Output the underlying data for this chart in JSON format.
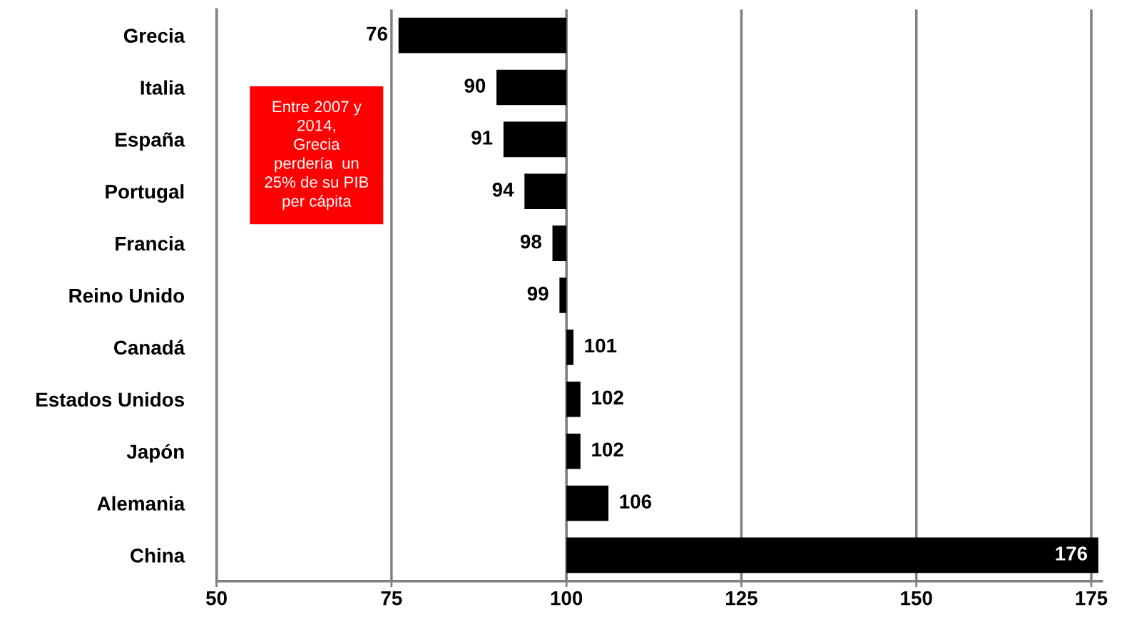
{
  "chart_data": {
    "type": "bar",
    "orientation": "horizontal",
    "categories": [
      "Grecia",
      "Italia",
      "España",
      "Portugal",
      "Francia",
      "Reino Unido",
      "Canadá",
      "Estados Unidos",
      "Japón",
      "Alemania",
      "China"
    ],
    "base": [
      100,
      100,
      100,
      100,
      100,
      100,
      100,
      100,
      100,
      100,
      100
    ],
    "values": [
      -24,
      -10,
      -9,
      -6,
      -2,
      -1,
      1,
      2,
      2,
      6,
      76
    ],
    "value_labels": [
      "76",
      "90",
      "91",
      "94",
      "98",
      "99",
      "101",
      "102",
      "102",
      "106",
      "176"
    ],
    "color": "#000000",
    "xlim": [
      50,
      176.5
    ],
    "xticks": [
      50,
      75,
      100,
      125,
      150,
      175
    ],
    "grid": "x",
    "ref_lines": [
      {
        "axis": "x",
        "value": 100,
        "color": "#808080"
      }
    ],
    "annotations": [
      "Entre 2007 y\n2014,\nGrecia\nperdería  un\n25% de su PIB\nper cápita"
    ]
  }
}
